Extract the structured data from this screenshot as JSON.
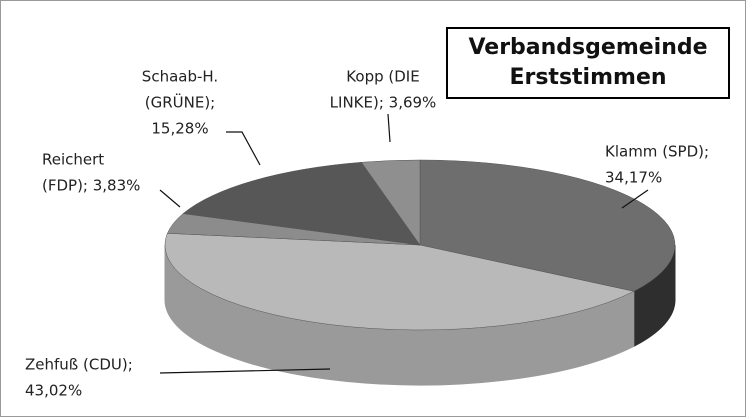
{
  "chart_data": {
    "type": "pie3d",
    "title": [
      "Verbandsgemeinde",
      "Erststimmen"
    ],
    "values": [
      34.17,
      43.02,
      3.83,
      15.28,
      3.69
    ],
    "value_labels": [
      [
        "Klamm (SPD);",
        "34,17%"
      ],
      [
        "Zehfuß (CDU);",
        "43,02%"
      ],
      [
        "Reichert",
        "(FDP); 3,83%"
      ],
      [
        "Schaab-H.",
        "(GRÜNE);",
        "15,28%"
      ],
      [
        "Kopp (DIE",
        "LINKE); 3,69%"
      ]
    ],
    "colors": [
      "#6e6e6e",
      "#b9b9b9",
      "#8c8c8c",
      "#575757",
      "#8f8f8f"
    ],
    "side_colors": [
      "#2e2e2e",
      "#9a9a9a",
      "#6a6a6a",
      "#3c3c3c",
      "#6c6c6c"
    ]
  }
}
